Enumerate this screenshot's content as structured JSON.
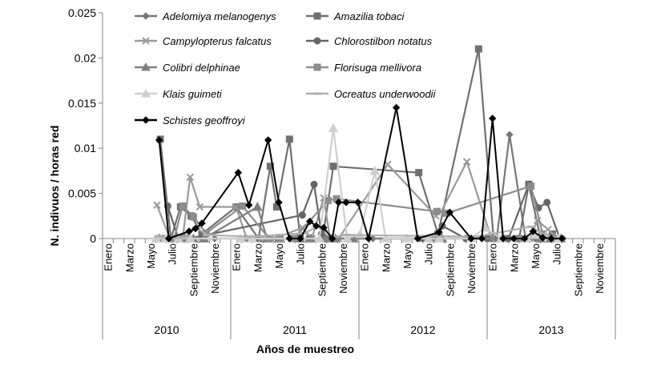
{
  "chart_data": {
    "type": "line",
    "ylabel": "N. indivuos / horas red",
    "xlabel": "Años de muestreo",
    "ylim": [
      0,
      0.025
    ],
    "y_ticks": [
      "0",
      "0.005",
      "0.01",
      "0.015",
      "0.02",
      "0.025"
    ],
    "grid": false,
    "legend_position": "top-left inside",
    "years": [
      "2010",
      "2011",
      "2012",
      "2013"
    ],
    "month_labels": [
      "Enero",
      "Marzo",
      "Mayo",
      "Julio",
      "Septiembre",
      "Noviembre"
    ],
    "series": [
      {
        "name": "Adelomiya melanogenys",
        "color": "#777777",
        "marker": "diamond",
        "points": [
          [
            4.7,
            0
          ],
          [
            5.8,
            0
          ],
          [
            6.9,
            0
          ],
          [
            8.0,
            0
          ],
          [
            8.8,
            0
          ],
          [
            10.0,
            0
          ],
          [
            13.0,
            0
          ],
          [
            14.0,
            0
          ],
          [
            15.0,
            0
          ],
          [
            15.8,
            0
          ],
          [
            17.0,
            0
          ],
          [
            17.8,
            0
          ],
          [
            19.1,
            0
          ],
          [
            20.2,
            0
          ],
          [
            21.0,
            0
          ],
          [
            24.8,
            0
          ],
          [
            29.2,
            0
          ],
          [
            29.8,
            0
          ],
          [
            36.4,
            0
          ],
          [
            37.6,
            0.0115
          ],
          [
            39.1,
            0
          ],
          [
            40.0,
            0
          ],
          [
            40.7,
            0
          ],
          [
            41.6,
            0
          ],
          [
            42.6,
            0
          ]
        ]
      },
      {
        "name": "Amazilia tobaci",
        "color": "#707070",
        "marker": "square",
        "points": [
          [
            4.9,
            0.011
          ],
          [
            5.9,
            0
          ],
          [
            6.8,
            0.0035
          ],
          [
            7.8,
            0.0025
          ],
          [
            8.8,
            0.0005
          ],
          [
            12.0,
            0.0035
          ],
          [
            14.1,
            0
          ],
          [
            15.2,
            0.008
          ],
          [
            15.8,
            0.0035
          ],
          [
            17.0,
            0.011
          ],
          [
            18.0,
            0
          ],
          [
            18.9,
            0
          ],
          [
            20.1,
            0
          ],
          [
            21.1,
            0.008
          ],
          [
            29.1,
            0.0073
          ],
          [
            30.9,
            0.0005
          ],
          [
            34.7,
            0.021
          ],
          [
            36.1,
            0
          ],
          [
            37.3,
            0
          ],
          [
            38.5,
            0
          ],
          [
            39.4,
            0.006
          ],
          [
            40.5,
            0
          ],
          [
            41.6,
            0.0005
          ]
        ]
      },
      {
        "name": "Campylopterus falcatus",
        "color": "#9a9a9a",
        "marker": "x",
        "points": [
          [
            4.6,
            0.0037
          ],
          [
            5.8,
            0
          ],
          [
            7.0,
            0
          ],
          [
            7.7,
            0.0068
          ],
          [
            8.6,
            0.0035
          ],
          [
            12.0,
            0.0035
          ],
          [
            13.0,
            0
          ],
          [
            14.4,
            0
          ],
          [
            15.6,
            0
          ],
          [
            18.2,
            0.0012
          ],
          [
            19.1,
            0
          ],
          [
            20.2,
            0.0045
          ],
          [
            20.8,
            0
          ],
          [
            21.6,
            0
          ],
          [
            26.2,
            0.0082
          ],
          [
            30.7,
            0.0025
          ],
          [
            31.2,
            0.003
          ],
          [
            33.6,
            0.0085
          ],
          [
            35.9,
            0
          ],
          [
            37.0,
            0
          ],
          [
            38.4,
            0
          ],
          [
            39.5,
            0
          ],
          [
            40.2,
            0.002
          ],
          [
            41.2,
            0.001
          ],
          [
            42.2,
            0
          ]
        ]
      },
      {
        "name": "Chlorostilbon notatus",
        "color": "#666666",
        "marker": "circle",
        "points": [
          [
            5.6,
            0.0036
          ],
          [
            6.6,
            0
          ],
          [
            7.6,
            0
          ],
          [
            18.2,
            0.0026
          ],
          [
            19.3,
            0.006
          ],
          [
            20.0,
            0.0005
          ],
          [
            21.0,
            0
          ],
          [
            29.5,
            0
          ],
          [
            30.5,
            0
          ],
          [
            31.3,
            0.0014
          ],
          [
            33.5,
            0
          ],
          [
            35.5,
            0
          ],
          [
            37.5,
            0
          ],
          [
            39.4,
            0.006
          ],
          [
            40.3,
            0.0034
          ],
          [
            41.1,
            0.004
          ],
          [
            42.3,
            0
          ]
        ]
      },
      {
        "name": "Colibri delphinae",
        "color": "#808080",
        "marker": "triangle",
        "points": [
          [
            4.8,
            0
          ],
          [
            5.7,
            0
          ],
          [
            6.5,
            0
          ],
          [
            7.2,
            0
          ],
          [
            8.0,
            0
          ],
          [
            9.0,
            0
          ],
          [
            14.0,
            0.0035
          ],
          [
            14.9,
            0
          ],
          [
            16.0,
            0
          ],
          [
            18.0,
            0
          ],
          [
            19.0,
            0
          ],
          [
            20.4,
            0
          ],
          [
            21.3,
            0
          ],
          [
            23.0,
            0
          ],
          [
            30.4,
            0
          ],
          [
            31.3,
            0
          ],
          [
            40.5,
            0
          ],
          [
            41.4,
            0
          ],
          [
            42.4,
            0
          ]
        ]
      },
      {
        "name": "Florisuga mellivora",
        "color": "#8c8c8c",
        "marker": "square",
        "points": [
          [
            5.0,
            0
          ],
          [
            6.2,
            0
          ],
          [
            7.0,
            0.0036
          ],
          [
            8.0,
            0.0024
          ],
          [
            9.2,
            0.0006
          ],
          [
            12.6,
            0.0036
          ],
          [
            15.1,
            0
          ],
          [
            16.1,
            0
          ],
          [
            17.4,
            0
          ],
          [
            20.6,
            0.0042
          ],
          [
            21.4,
            0.0044
          ],
          [
            30.8,
            0.003
          ],
          [
            31.7,
            0.0028
          ],
          [
            39.6,
            0.0058
          ],
          [
            40.7,
            0.0005
          ],
          [
            41.7,
            0
          ]
        ]
      },
      {
        "name": "Klais guimeti",
        "color": "#cfcfcf",
        "marker": "triangle",
        "points": [
          [
            4.5,
            0
          ],
          [
            5.4,
            0
          ],
          [
            6.6,
            0
          ],
          [
            7.7,
            0
          ],
          [
            12.4,
            0
          ],
          [
            13.5,
            0
          ],
          [
            19.8,
            0
          ],
          [
            21.1,
            0.0122
          ],
          [
            22.4,
            0
          ],
          [
            23.6,
            0.0005
          ],
          [
            25.0,
            0.0075
          ],
          [
            26.0,
            0
          ],
          [
            28.0,
            0
          ],
          [
            30.0,
            0
          ],
          [
            31.0,
            0
          ],
          [
            34.0,
            0
          ],
          [
            35.3,
            0.0012
          ],
          [
            36.8,
            0
          ],
          [
            39.2,
            0
          ],
          [
            40.0,
            0.0004
          ],
          [
            41.0,
            0.0003
          ],
          [
            42.2,
            0
          ]
        ]
      },
      {
        "name": "Ocreatus underwoodii",
        "color": "#b0b0b0",
        "marker": "dash",
        "points": [
          [
            4.7,
            0.0002
          ],
          [
            5.7,
            0
          ],
          [
            7.1,
            0.0001
          ],
          [
            8.3,
            0.0012
          ],
          [
            9.3,
            0.0004
          ],
          [
            13.3,
            0.0002
          ],
          [
            18.4,
            0.0006
          ],
          [
            19.6,
            0.0013
          ],
          [
            21.2,
            0.0002
          ],
          [
            22.4,
            0.0004
          ],
          [
            34.4,
            0.0002
          ],
          [
            39.6,
            0.0013
          ],
          [
            40.8,
            0.0005
          ],
          [
            41.8,
            0
          ]
        ]
      },
      {
        "name": "Schistes geoffroyi",
        "color": "#000000",
        "marker": "diamond",
        "points": [
          [
            4.8,
            0.0109
          ],
          [
            5.7,
            0
          ],
          [
            7.6,
            0.0008
          ],
          [
            8.2,
            0.0011
          ],
          [
            8.8,
            0.0017
          ],
          [
            12.2,
            0.0073
          ],
          [
            13.2,
            0.0037
          ],
          [
            15.0,
            0.0109
          ],
          [
            16.0,
            0.004
          ],
          [
            17.0,
            0
          ],
          [
            18.0,
            0
          ],
          [
            18.9,
            0.0019
          ],
          [
            19.5,
            0.0014
          ],
          [
            20.2,
            0.0012
          ],
          [
            21.0,
            0
          ],
          [
            21.6,
            0.004
          ],
          [
            22.3,
            0.004
          ],
          [
            23.4,
            0.004
          ],
          [
            24.4,
            0
          ],
          [
            27.0,
            0.0145
          ],
          [
            29.0,
            0
          ],
          [
            31.0,
            0.0007
          ],
          [
            32.0,
            0.0029
          ],
          [
            34.0,
            0
          ],
          [
            35.0,
            0
          ],
          [
            36.0,
            0.0133
          ],
          [
            37.0,
            0
          ],
          [
            38.0,
            0
          ],
          [
            39.0,
            0
          ],
          [
            39.8,
            0.0008
          ],
          [
            40.7,
            0.0001
          ],
          [
            41.5,
            0
          ],
          [
            42.5,
            0
          ]
        ]
      }
    ]
  }
}
